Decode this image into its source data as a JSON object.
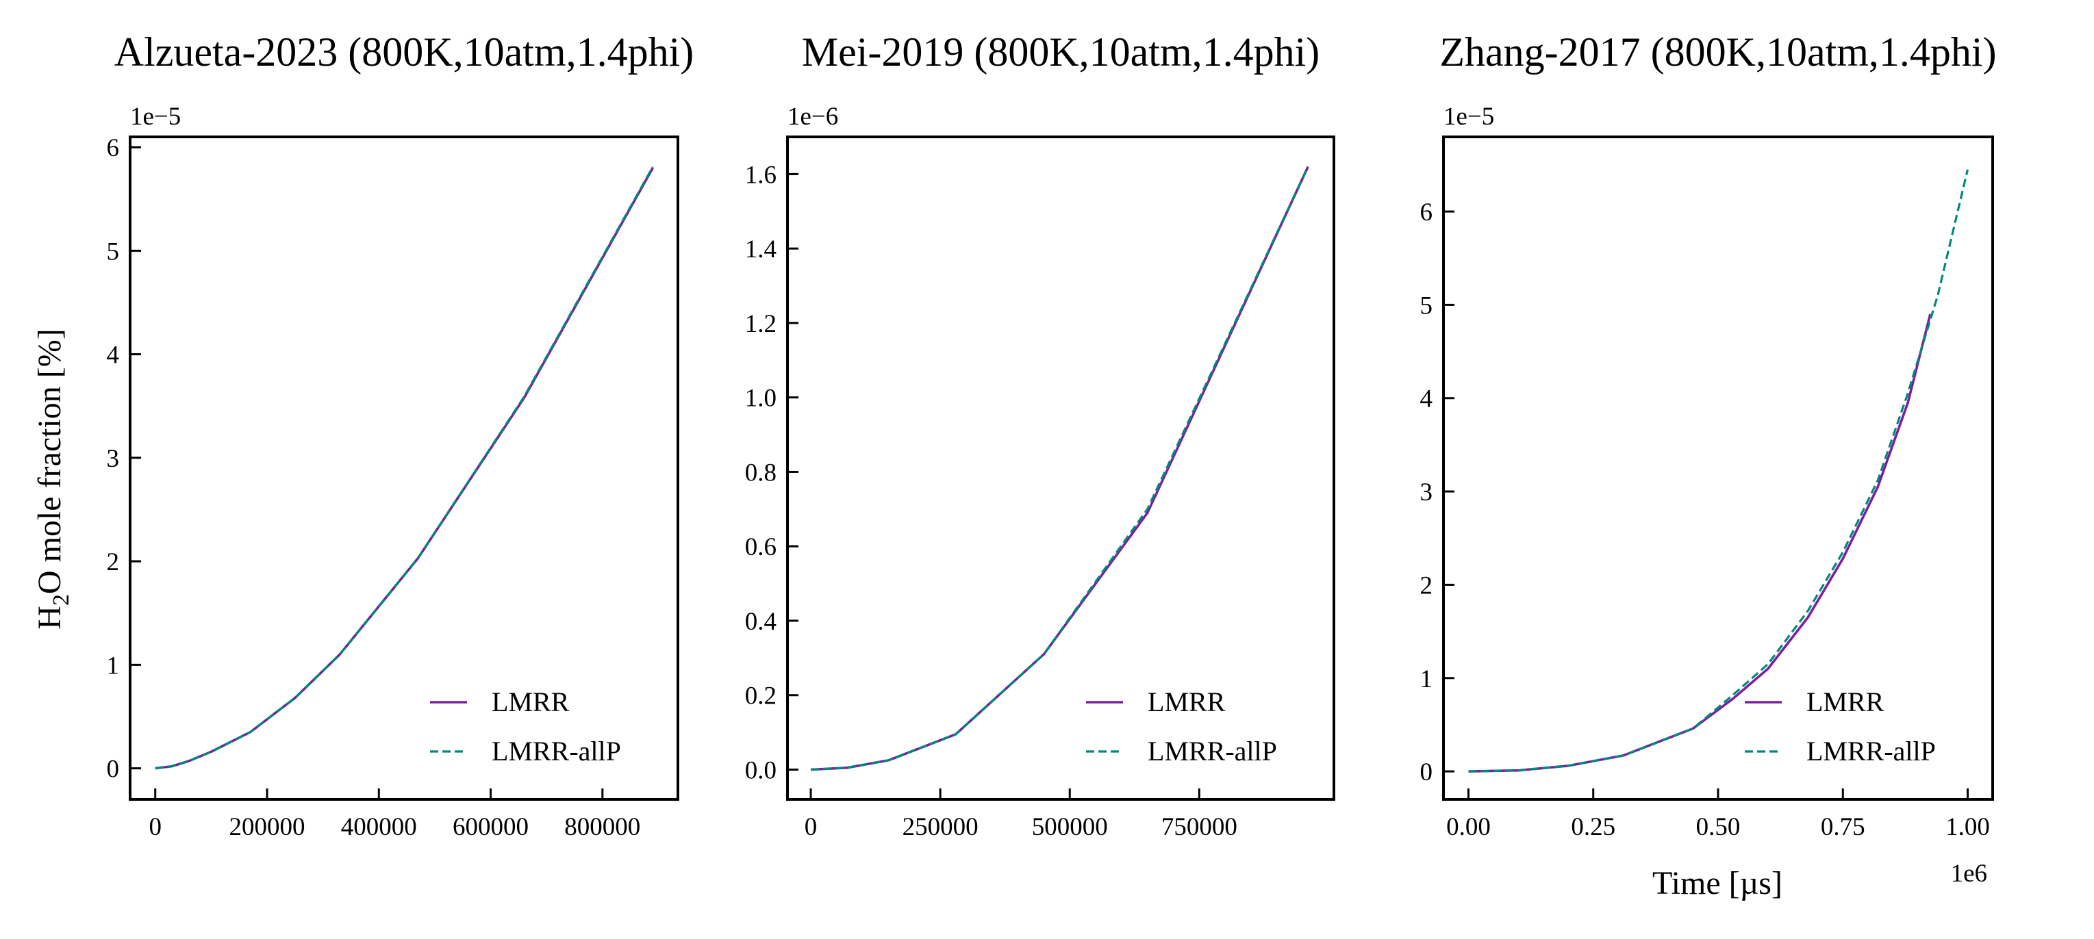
{
  "figure": {
    "ylabel": "H",
    "ylabel_sub": "2",
    "ylabel_rest": "O mole fraction [%]",
    "xlabel": "Time [µs]",
    "x_offset_label": "1e6"
  },
  "colors": {
    "LMRR": "#7b1fa2",
    "LMRR-allP": "#00897b"
  },
  "chart_data": [
    {
      "type": "line",
      "title": "Alzueta-2023 (800K,10atm,1.4phi)",
      "y_offset_label": "1e−5",
      "x_ticks": [
        0,
        200000,
        400000,
        600000,
        800000
      ],
      "x_tick_labels": [
        "0",
        "200000",
        "400000",
        "600000",
        "800000"
      ],
      "y_ticks": [
        0,
        1e-05,
        2e-05,
        3e-05,
        4e-05,
        5e-05,
        6e-05
      ],
      "y_tick_labels": [
        "0",
        "1",
        "2",
        "3",
        "4",
        "5",
        "6"
      ],
      "xlim": [
        -45000,
        935000
      ],
      "ylim": [
        -3e-06,
        6.1e-05
      ],
      "legend": "lower-right",
      "series": [
        {
          "name": "LMRR",
          "style": "solid",
          "x": [
            0,
            30000,
            60000,
            100000,
            170000,
            250000,
            330000,
            470000,
            660000,
            890000
          ],
          "y": [
            0,
            2e-07,
            7e-07,
            1.6e-06,
            3.5e-06,
            6.8e-06,
            1.1e-05,
            2.03e-05,
            3.58e-05,
            5.8e-05
          ]
        },
        {
          "name": "LMRR-allP",
          "style": "dashed",
          "x": [
            0,
            30000,
            60000,
            100000,
            170000,
            250000,
            330000,
            470000,
            660000,
            890000
          ],
          "y": [
            0,
            2e-07,
            7e-07,
            1.6e-06,
            3.5e-06,
            6.8e-06,
            1.1e-05,
            2.03e-05,
            3.59e-05,
            5.81e-05
          ]
        }
      ]
    },
    {
      "type": "line",
      "title": "Mei-2019 (800K,10atm,1.4phi)",
      "y_offset_label": "1e−6",
      "x_ticks": [
        0,
        250000,
        500000,
        750000
      ],
      "x_tick_labels": [
        "0",
        "250000",
        "500000",
        "750000"
      ],
      "y_ticks": [
        0,
        2e-07,
        4e-07,
        6e-07,
        8e-07,
        1e-06,
        1.2e-06,
        1.4e-06,
        1.6e-06
      ],
      "y_tick_labels": [
        "0.0",
        "0.2",
        "0.4",
        "0.6",
        "0.8",
        "1.0",
        "1.2",
        "1.4",
        "1.6"
      ],
      "xlim": [
        -45000,
        1010000
      ],
      "ylim": [
        -8e-08,
        1.7e-06
      ],
      "legend": "lower-right",
      "series": [
        {
          "name": "LMRR",
          "style": "solid",
          "x": [
            0,
            70000,
            150000,
            280000,
            450000,
            650000,
            960000
          ],
          "y": [
            0,
            5e-09,
            2.5e-08,
            9.5e-08,
            3.1e-07,
            6.9e-07,
            1.62e-06
          ]
        },
        {
          "name": "LMRR-allP",
          "style": "dashed",
          "x": [
            0,
            70000,
            150000,
            280000,
            450000,
            650000,
            960000
          ],
          "y": [
            0,
            5e-09,
            2.5e-08,
            9.5e-08,
            3.1e-07,
            7e-07,
            1.62e-06
          ]
        }
      ]
    },
    {
      "type": "line",
      "title": "Zhang-2017 (800K,10atm,1.4phi)",
      "y_offset_label": "1e−5",
      "x_ticks": [
        0,
        250000.0,
        500000.0,
        750000.0,
        1000000.0
      ],
      "x_tick_labels": [
        "0.00",
        "0.25",
        "0.50",
        "0.75",
        "1.00"
      ],
      "y_ticks": [
        0,
        1e-05,
        2e-05,
        3e-05,
        4e-05,
        5e-05,
        6e-05
      ],
      "y_tick_labels": [
        "0",
        "1",
        "2",
        "3",
        "4",
        "5",
        "6"
      ],
      "xlim": [
        -50000.0,
        1050000.0
      ],
      "ylim": [
        -3e-06,
        6.8e-05
      ],
      "legend": "lower-right",
      "series": [
        {
          "name": "LMRR",
          "style": "solid",
          "x": [
            0,
            100000.0,
            200000.0,
            310000.0,
            450000.0,
            530000.0,
            600000.0,
            680000.0,
            750000.0,
            820000.0,
            880000.0,
            925000.0
          ],
          "y": [
            0,
            1e-07,
            6e-07,
            1.7e-06,
            4.6e-06,
            7.8e-06,
            1.1e-05,
            1.65e-05,
            2.28e-05,
            3.05e-05,
            3.95e-05,
            4.9e-05
          ]
        },
        {
          "name": "LMRR-allP",
          "style": "dashed",
          "x": [
            0,
            100000.0,
            200000.0,
            310000.0,
            450000.0,
            530000.0,
            600000.0,
            680000.0,
            750000.0,
            820000.0,
            880000.0,
            940000.0,
            1000000.0
          ],
          "y": [
            0,
            1e-07,
            6e-07,
            1.7e-06,
            4.6e-06,
            8.2e-06,
            1.15e-05,
            1.72e-05,
            2.35e-05,
            3.12e-05,
            4.05e-05,
            5.1e-05,
            6.45e-05
          ]
        }
      ]
    }
  ]
}
